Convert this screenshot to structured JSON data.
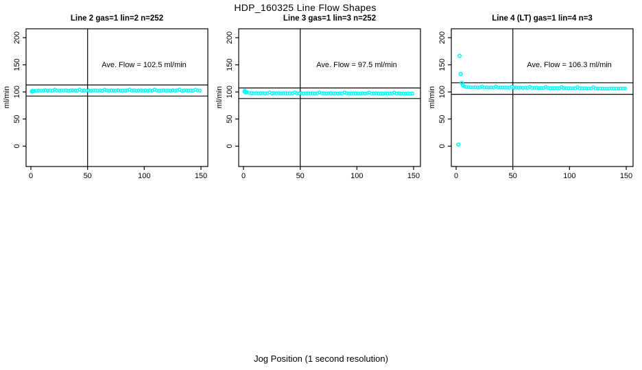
{
  "title": "HDP_160325  Line Flow Shapes",
  "xlabel": "Jog Position (1 second resolution)",
  "colors": {
    "points": "#00FFFF",
    "axis": "#000000",
    "background": "#FFFFFF"
  },
  "chart_data": [
    {
      "type": "scatter",
      "title": "Line 2 gas=1 lin=2 n=252",
      "annotation": "Ave. Flow =  102.5  ml/min",
      "ave_flow_ml_min": 102.5,
      "ylabel": "ml/min",
      "xlim": [
        0,
        150
      ],
      "ylim": [
        0,
        200
      ],
      "xticks": [
        0,
        50,
        100,
        150
      ],
      "yticks": [
        0,
        50,
        100,
        150,
        200
      ],
      "hlines": [
        112.8,
        92.3
      ],
      "vlines": [
        50
      ],
      "grid": false,
      "series": {
        "x_start": 1,
        "x_step": 2,
        "y": [
          100.4,
          101.8,
          102.4,
          102.7,
          102.3,
          102.6,
          103.0,
          102.3,
          102.7,
          102.4,
          104.1,
          102.6,
          102.3,
          102.8,
          102.5,
          102.9,
          102.2,
          102.6,
          103.0,
          102.4,
          102.7,
          104.3,
          102.3,
          102.8,
          102.5,
          102.9,
          102.2,
          102.6,
          102.9,
          102.4,
          102.7,
          102.4,
          104.0,
          102.8,
          102.5,
          102.9,
          102.3,
          102.6,
          103.0,
          102.4,
          102.7,
          102.3,
          102.8,
          104.2,
          102.5,
          102.9,
          102.2,
          102.6,
          102.9,
          102.4,
          102.7,
          102.4,
          102.8,
          102.5,
          104.1,
          102.9,
          102.3,
          102.6,
          103.0,
          102.4,
          102.7,
          102.3,
          102.8,
          102.5,
          102.9,
          104.2,
          102.2,
          102.6,
          102.9,
          102.4,
          102.7,
          102.4,
          104.0,
          102.8,
          102.5
        ]
      },
      "extra_points": [
        [
          1,
          100.6
        ],
        [
          1,
          101.4
        ],
        [
          2,
          101.0
        ]
      ]
    },
    {
      "type": "scatter",
      "title": "Line 3 gas=1 lin=3 n=252",
      "annotation": "Ave. Flow =  97.5  ml/min",
      "ave_flow_ml_min": 97.5,
      "ylabel": "ml/min",
      "xlim": [
        0,
        150
      ],
      "ylim": [
        0,
        200
      ],
      "xticks": [
        0,
        50,
        100,
        150
      ],
      "yticks": [
        0,
        50,
        100,
        150,
        200
      ],
      "hlines": [
        107.3,
        87.8
      ],
      "vlines": [
        50
      ],
      "grid": false,
      "series": {
        "x_start": 1,
        "x_step": 2,
        "y": [
          102.3,
          99.5,
          98.2,
          97.8,
          97.6,
          97.9,
          97.3,
          97.7,
          98.0,
          97.4,
          97.7,
          99.2,
          97.3,
          97.8,
          97.5,
          97.9,
          97.2,
          97.6,
          97.9,
          97.4,
          97.6,
          97.3,
          99.0,
          97.7,
          97.4,
          97.8,
          97.1,
          97.5,
          97.8,
          97.3,
          97.6,
          97.2,
          97.7,
          99.1,
          97.4,
          97.7,
          97.1,
          97.5,
          97.8,
          97.2,
          97.5,
          97.2,
          97.6,
          97.3,
          98.9,
          97.6,
          97.0,
          97.4,
          97.7,
          97.2,
          97.4,
          97.1,
          97.5,
          97.2,
          97.6,
          98.8,
          97.0,
          97.3,
          97.6,
          97.1,
          97.3,
          97.0,
          97.4,
          97.1,
          97.5,
          97.2,
          98.7,
          97.2,
          97.5,
          97.0,
          97.2,
          96.9,
          97.3,
          97.0,
          97.2
        ]
      },
      "extra_points": [
        [
          1,
          101.6
        ],
        [
          1,
          100.4
        ],
        [
          2,
          98.8
        ]
      ]
    },
    {
      "type": "scatter",
      "title": "Line 4 (LT) gas=1 lin=4 n=3",
      "annotation": "Ave. Flow =  106.3  ml/min",
      "ave_flow_ml_min": 106.3,
      "ylabel": "ml/min",
      "xlim": [
        0,
        150
      ],
      "ylim": [
        0,
        200
      ],
      "xticks": [
        0,
        50,
        100,
        150
      ],
      "yticks": [
        0,
        50,
        100,
        150,
        200
      ],
      "hlines": [
        116.9,
        95.7
      ],
      "vlines": [
        50
      ],
      "grid": false,
      "series": {
        "x_start": 7,
        "x_step": 2,
        "y": [
          110.2,
          109.3,
          108.8,
          108.5,
          108.2,
          108.6,
          108.0,
          108.4,
          110.0,
          108.2,
          108.5,
          108.1,
          108.4,
          108.0,
          109.8,
          108.3,
          107.9,
          108.2,
          107.8,
          108.1,
          107.7,
          109.6,
          107.9,
          108.2,
          107.6,
          108.0,
          107.5,
          107.9,
          107.4,
          109.4,
          107.7,
          107.3,
          107.6,
          107.2,
          107.5,
          107.1,
          109.2,
          107.4,
          107.0,
          107.3,
          106.9,
          107.2,
          106.8,
          109.0,
          107.1,
          106.7,
          107.0,
          106.6,
          106.9,
          106.5,
          108.8,
          106.8,
          106.4,
          106.7,
          106.3,
          106.6,
          106.2,
          108.6,
          106.5,
          106.1,
          106.4,
          106.0,
          106.3,
          105.9,
          106.2,
          106.4,
          106.0,
          106.3,
          106.1,
          106.4,
          106.2,
          106.5
        ]
      },
      "extra_points": [
        [
          3,
          166.5
        ],
        [
          4,
          133.0
        ],
        [
          5,
          116.5
        ],
        [
          6,
          112.5
        ],
        [
          2,
          3.0
        ]
      ]
    }
  ]
}
